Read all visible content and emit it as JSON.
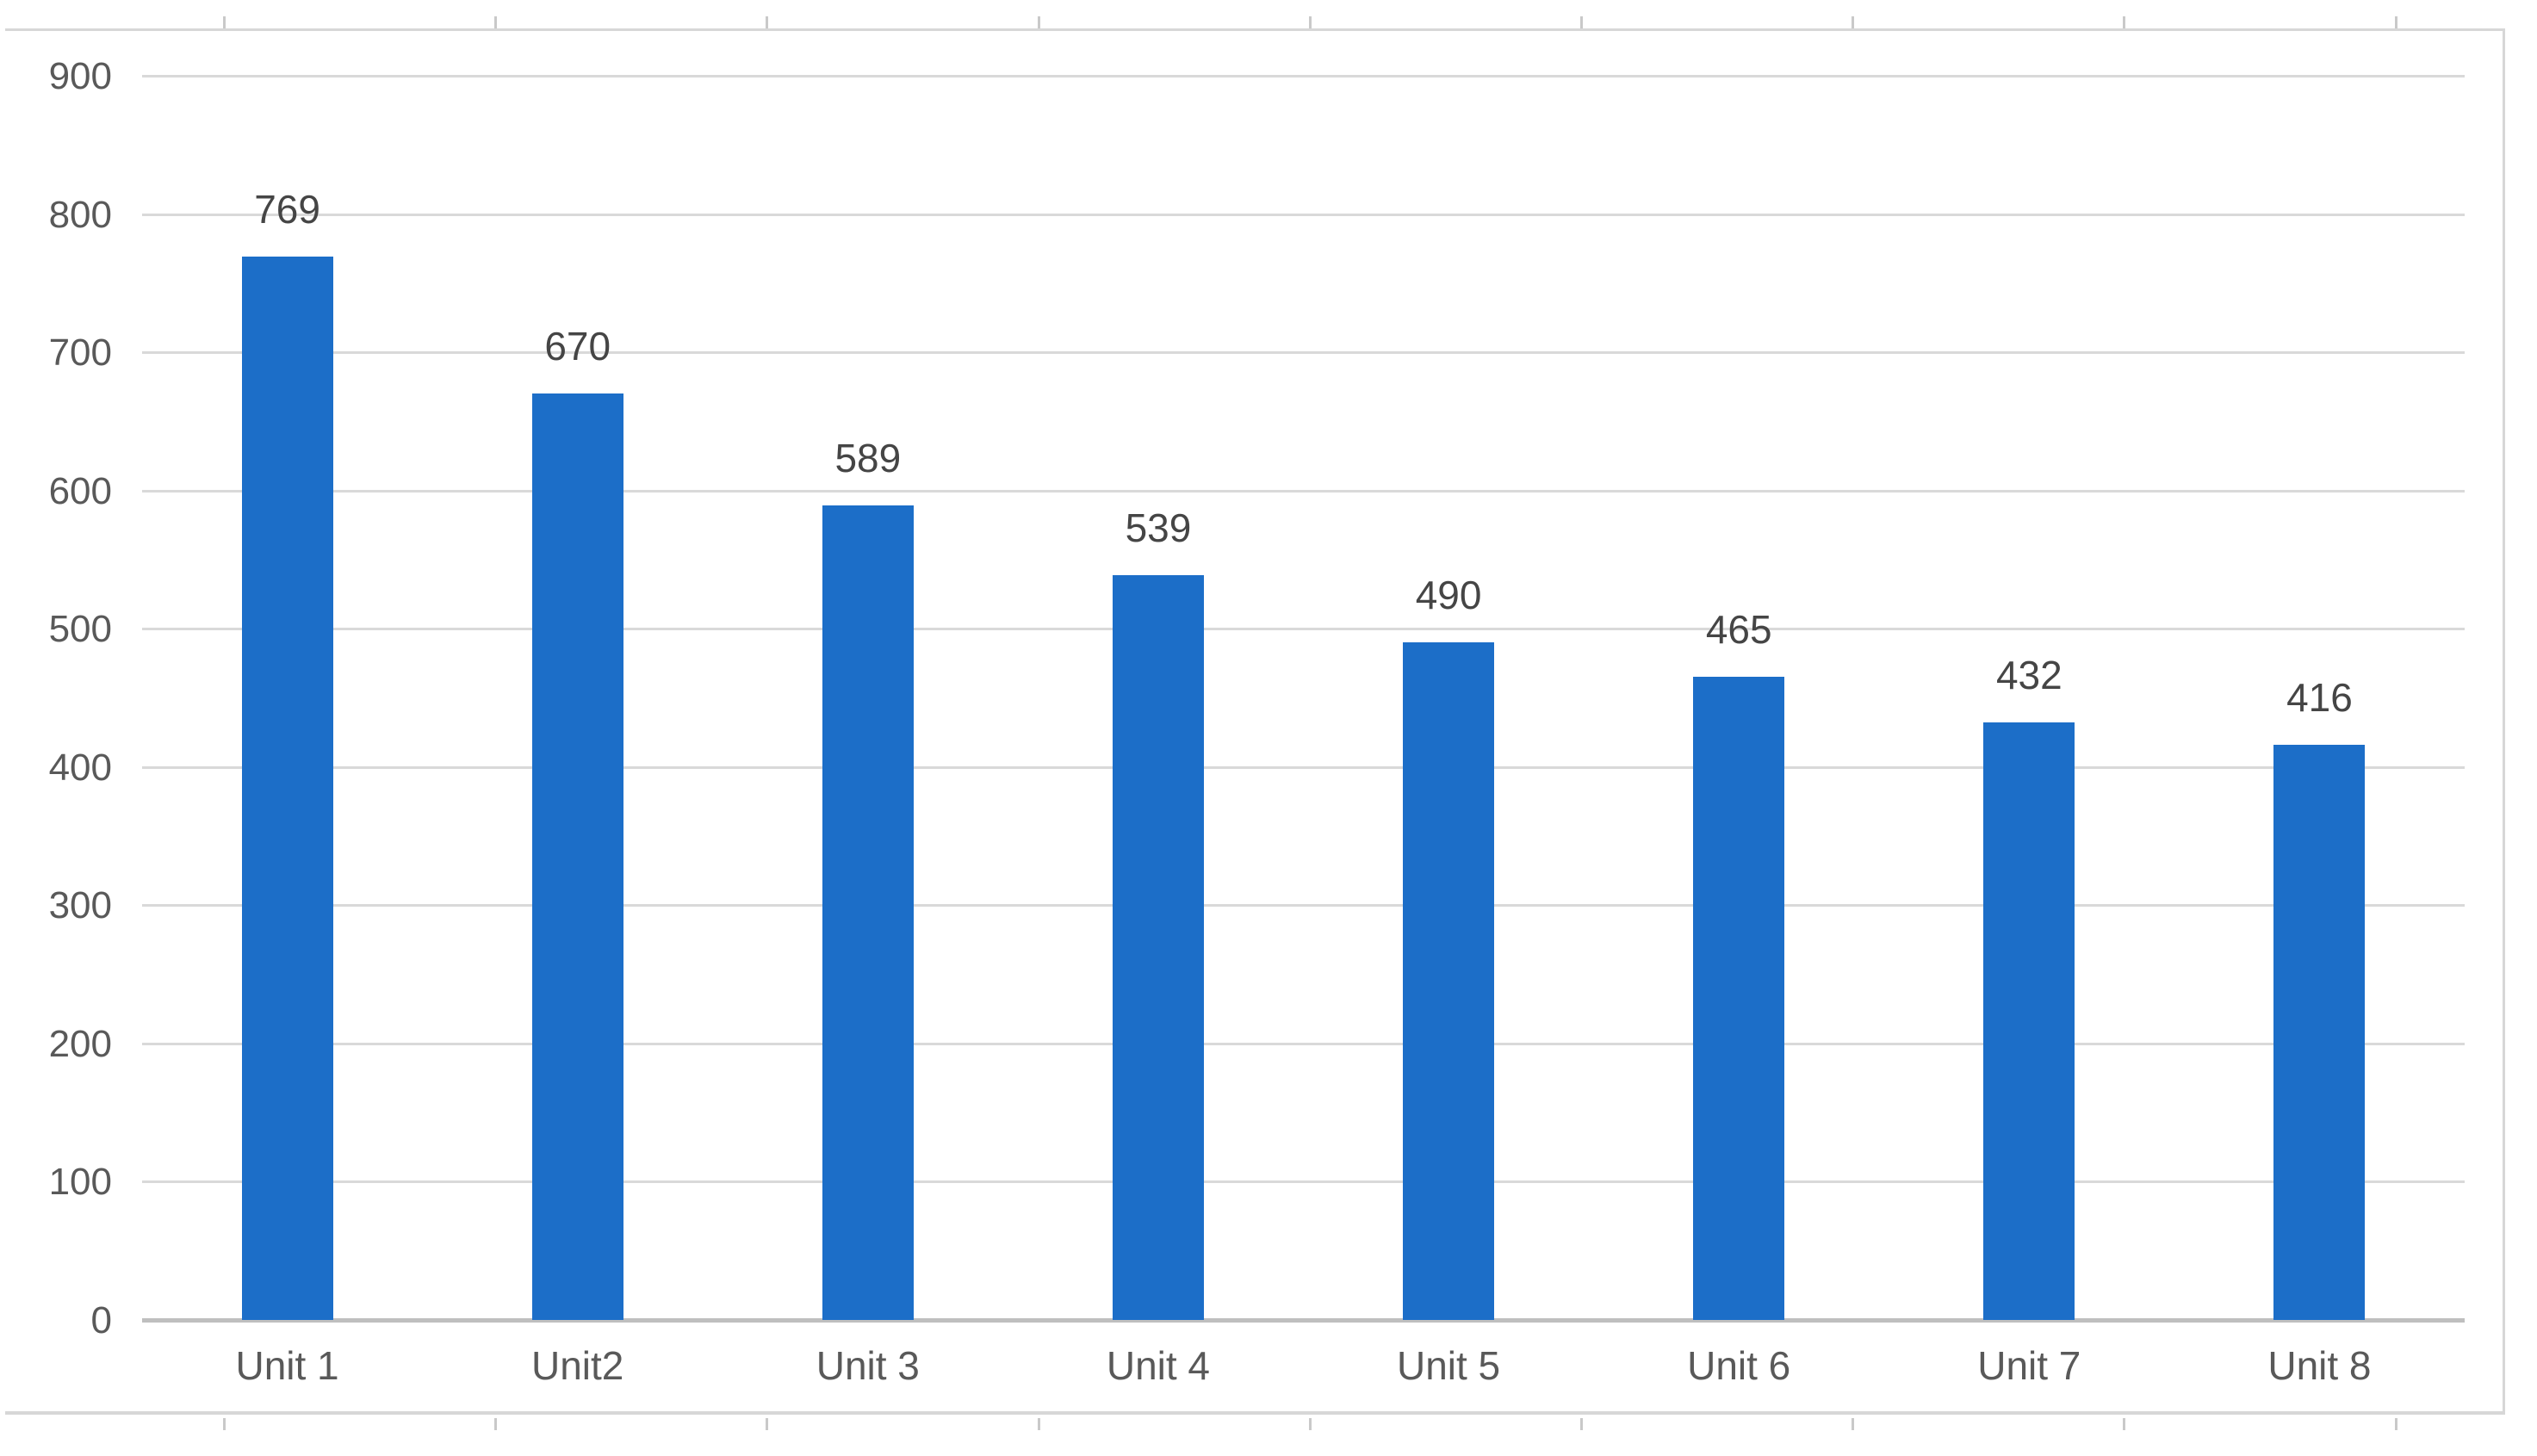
{
  "chart_data": {
    "type": "bar",
    "title": "",
    "xlabel": "",
    "ylabel": "",
    "categories": [
      "Unit 1",
      "Unit2",
      "Unit 3",
      "Unit 4",
      "Unit 5",
      "Unit 6",
      "Unit 7",
      "Unit 8"
    ],
    "values": [
      769,
      670,
      589,
      539,
      490,
      465,
      432,
      416
    ],
    "data_labels_shown": true,
    "yticks": [
      0,
      100,
      200,
      300,
      400,
      500,
      600,
      700,
      800,
      900
    ],
    "ylim": [
      0,
      900
    ],
    "grid": true,
    "legend": false,
    "colors": {
      "bar": "#1C6EC8",
      "gridline": "#D9D9D9",
      "axis_line": "#BFBFBF",
      "frame_border": "#D7D7D7",
      "sheet_tick": "#C9C9C9",
      "axis_text": "#595959",
      "data_label_text": "#454545",
      "background": "#FFFFFF"
    }
  }
}
